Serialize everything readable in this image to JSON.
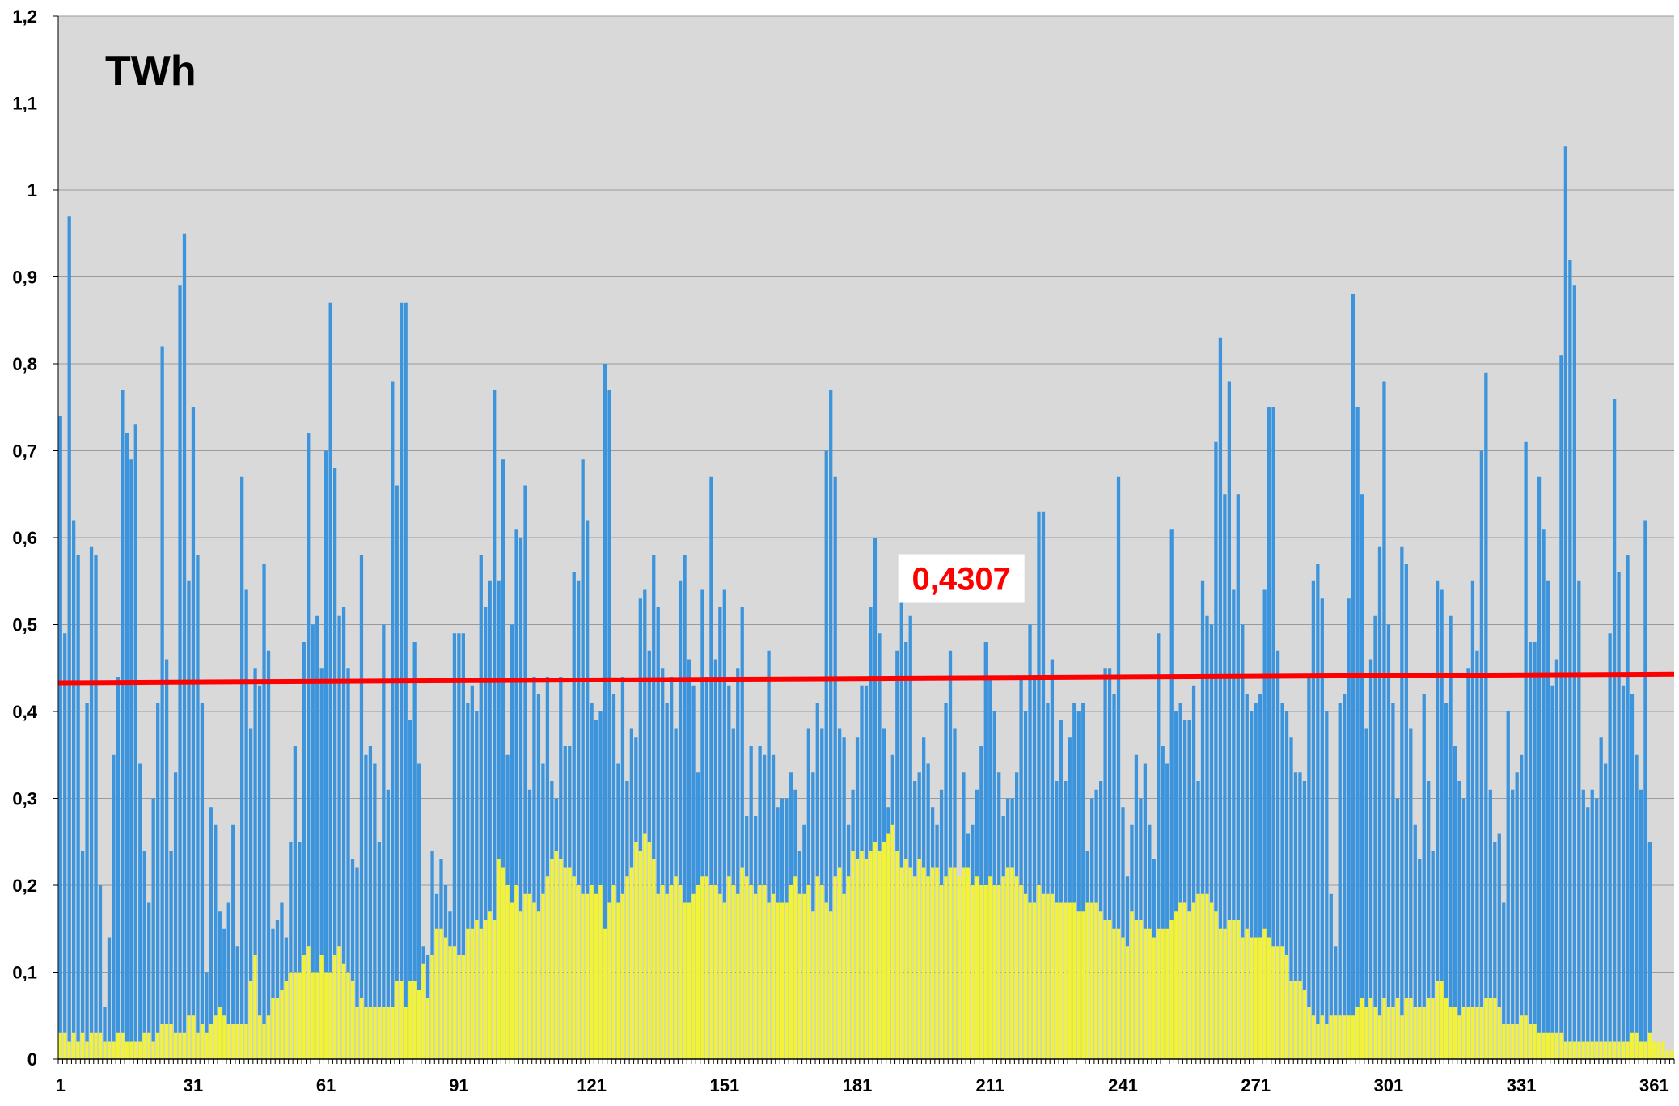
{
  "chart_data": {
    "type": "bar",
    "title": "",
    "unit_label": "TWh",
    "xlabel": "",
    "ylabel": "",
    "ylim": [
      0,
      1.2
    ],
    "yticks": [
      "0",
      "0,1",
      "0,2",
      "0,3",
      "0,4",
      "0,5",
      "0,6",
      "0,7",
      "0,8",
      "0,9",
      "1",
      "1,1",
      "1,2"
    ],
    "xticks": [
      "1",
      "31",
      "61",
      "91",
      "121",
      "151",
      "181",
      "211",
      "241",
      "271",
      "301",
      "331",
      "361"
    ],
    "x_range": [
      1,
      365
    ],
    "grid": true,
    "legend": "none",
    "colors": {
      "total_bar": "#3b94dc",
      "solar_bar": "#f2f239",
      "trendline": "#ff0000",
      "plot_background": "#d9d9d9",
      "annotation": "#ff0000"
    },
    "trendline": {
      "start": 0.433,
      "end": 0.443
    },
    "annotation": {
      "text": "0,4307",
      "day": 205,
      "value": 0.553
    },
    "series": [
      {
        "key": "total",
        "values": [
          0.74,
          0.49,
          0.97,
          0.62,
          0.58,
          0.24,
          0.41,
          0.59,
          0.58,
          0.2,
          0.06,
          0.14,
          0.35,
          0.44,
          0.77,
          0.72,
          0.69,
          0.73,
          0.34,
          0.24,
          0.18,
          0.3,
          0.41,
          0.82,
          0.46,
          0.24,
          0.33,
          0.89,
          0.95,
          0.55,
          0.75,
          0.58,
          0.41,
          0.1,
          0.29,
          0.27,
          0.17,
          0.15,
          0.18,
          0.27,
          0.13,
          0.67,
          0.54,
          0.38,
          0.45,
          0.43,
          0.57,
          0.47,
          0.15,
          0.16,
          0.18,
          0.14,
          0.25,
          0.36,
          0.25,
          0.48,
          0.72,
          0.5,
          0.51,
          0.45,
          0.7,
          0.87,
          0.68,
          0.51,
          0.52,
          0.45,
          0.23,
          0.22,
          0.58,
          0.35,
          0.36,
          0.34,
          0.25,
          0.5,
          0.31,
          0.78,
          0.66,
          0.87,
          0.87,
          0.39,
          0.48,
          0.34,
          0.13,
          0.12,
          0.24,
          0.19,
          0.23,
          0.2,
          0.17,
          0.49,
          0.49,
          0.49,
          0.41,
          0.43,
          0.4,
          0.58,
          0.52,
          0.55,
          0.77,
          0.55,
          0.69,
          0.35,
          0.5,
          0.61,
          0.6,
          0.66,
          0.31,
          0.44,
          0.42,
          0.34,
          0.44,
          0.32,
          0.3,
          0.44,
          0.36,
          0.36,
          0.56,
          0.55,
          0.69,
          0.62,
          0.41,
          0.39,
          0.4,
          0.8,
          0.77,
          0.42,
          0.34,
          0.44,
          0.32,
          0.38,
          0.37,
          0.53,
          0.54,
          0.47,
          0.58,
          0.52,
          0.45,
          0.41,
          0.44,
          0.38,
          0.55,
          0.58,
          0.46,
          0.43,
          0.33,
          0.54,
          0.44,
          0.67,
          0.46,
          0.52,
          0.54,
          0.43,
          0.38,
          0.45,
          0.52,
          0.28,
          0.36,
          0.28,
          0.36,
          0.35,
          0.47,
          0.35,
          0.29,
          0.3,
          0.3,
          0.33,
          0.31,
          0.24,
          0.27,
          0.38,
          0.33,
          0.41,
          0.38,
          0.7,
          0.77,
          0.67,
          0.38,
          0.37,
          0.27,
          0.31,
          0.37,
          0.43,
          0.43,
          0.52,
          0.6,
          0.49,
          0.38,
          0.29,
          0.35,
          0.47,
          0.57,
          0.48,
          0.51,
          0.32,
          0.33,
          0.37,
          0.34,
          0.29,
          0.27,
          0.31,
          0.41,
          0.47,
          0.38,
          0.16,
          0.33,
          0.26,
          0.27,
          0.31,
          0.36,
          0.48,
          0.44,
          0.4,
          0.33,
          0.28,
          0.3,
          0.3,
          0.33,
          0.44,
          0.4,
          0.5,
          0.44,
          0.63,
          0.63,
          0.41,
          0.46,
          0.32,
          0.39,
          0.32,
          0.37,
          0.41,
          0.4,
          0.41,
          0.24,
          0.3,
          0.31,
          0.32,
          0.45,
          0.45,
          0.42,
          0.67,
          0.29,
          0.21,
          0.27,
          0.35,
          0.3,
          0.34,
          0.27,
          0.23,
          0.49,
          0.36,
          0.34,
          0.61,
          0.4,
          0.41,
          0.39,
          0.39,
          0.43,
          0.32,
          0.55,
          0.51,
          0.5,
          0.71,
          0.83,
          0.65,
          0.78,
          0.54,
          0.65,
          0.5,
          0.42,
          0.4,
          0.41,
          0.42,
          0.54,
          0.75,
          0.75,
          0.47,
          0.41,
          0.4,
          0.37,
          0.33,
          0.33,
          0.32,
          0.44,
          0.55,
          0.57,
          0.53,
          0.4,
          0.19,
          0.13,
          0.41,
          0.42,
          0.53,
          0.88,
          0.75,
          0.65,
          0.38,
          0.46,
          0.51,
          0.59,
          0.78,
          0.5,
          0.41,
          0.3,
          0.59,
          0.57,
          0.38,
          0.27,
          0.23,
          0.42,
          0.32,
          0.24,
          0.55,
          0.54,
          0.41,
          0.51,
          0.36,
          0.32,
          0.3,
          0.45,
          0.55,
          0.47,
          0.7,
          0.79,
          0.31,
          0.25,
          0.26,
          0.18,
          0.4,
          0.31,
          0.33,
          0.35,
          0.71,
          0.48,
          0.48,
          0.67,
          0.61,
          0.55,
          0.43,
          0.46,
          0.81,
          1.05,
          0.92,
          0.89,
          0.55,
          0.31,
          0.29,
          0.31,
          0.3,
          0.37,
          0.34,
          0.49,
          0.76,
          0.56,
          0.43,
          0.58,
          0.42,
          0.35,
          0.31,
          0.62,
          0.25
        ]
      },
      {
        "key": "solar",
        "values": [
          0.03,
          0.03,
          0.02,
          0.03,
          0.02,
          0.03,
          0.02,
          0.03,
          0.03,
          0.03,
          0.02,
          0.02,
          0.02,
          0.03,
          0.03,
          0.02,
          0.02,
          0.02,
          0.02,
          0.03,
          0.03,
          0.02,
          0.03,
          0.04,
          0.04,
          0.04,
          0.03,
          0.03,
          0.03,
          0.05,
          0.05,
          0.03,
          0.04,
          0.03,
          0.04,
          0.05,
          0.06,
          0.05,
          0.04,
          0.04,
          0.04,
          0.04,
          0.04,
          0.09,
          0.12,
          0.05,
          0.04,
          0.05,
          0.07,
          0.07,
          0.08,
          0.09,
          0.1,
          0.1,
          0.1,
          0.12,
          0.13,
          0.1,
          0.1,
          0.12,
          0.1,
          0.1,
          0.12,
          0.13,
          0.11,
          0.1,
          0.09,
          0.06,
          0.07,
          0.06,
          0.06,
          0.06,
          0.06,
          0.06,
          0.06,
          0.06,
          0.09,
          0.09,
          0.06,
          0.09,
          0.09,
          0.08,
          0.11,
          0.07,
          0.12,
          0.15,
          0.15,
          0.14,
          0.13,
          0.13,
          0.12,
          0.12,
          0.15,
          0.15,
          0.16,
          0.15,
          0.16,
          0.17,
          0.16,
          0.23,
          0.22,
          0.2,
          0.18,
          0.2,
          0.17,
          0.19,
          0.19,
          0.18,
          0.17,
          0.19,
          0.21,
          0.23,
          0.24,
          0.23,
          0.22,
          0.22,
          0.21,
          0.2,
          0.19,
          0.19,
          0.2,
          0.19,
          0.2,
          0.15,
          0.18,
          0.2,
          0.18,
          0.19,
          0.21,
          0.22,
          0.25,
          0.24,
          0.26,
          0.25,
          0.23,
          0.19,
          0.2,
          0.19,
          0.2,
          0.21,
          0.2,
          0.18,
          0.18,
          0.19,
          0.2,
          0.21,
          0.21,
          0.2,
          0.2,
          0.19,
          0.18,
          0.21,
          0.2,
          0.19,
          0.22,
          0.21,
          0.2,
          0.19,
          0.2,
          0.2,
          0.18,
          0.19,
          0.18,
          0.18,
          0.18,
          0.2,
          0.21,
          0.19,
          0.19,
          0.2,
          0.17,
          0.21,
          0.2,
          0.18,
          0.17,
          0.21,
          0.22,
          0.19,
          0.21,
          0.24,
          0.23,
          0.24,
          0.23,
          0.24,
          0.25,
          0.24,
          0.25,
          0.26,
          0.27,
          0.24,
          0.22,
          0.23,
          0.22,
          0.21,
          0.23,
          0.22,
          0.21,
          0.22,
          0.22,
          0.2,
          0.21,
          0.22,
          0.22,
          0.21,
          0.22,
          0.22,
          0.2,
          0.21,
          0.2,
          0.2,
          0.21,
          0.2,
          0.2,
          0.21,
          0.22,
          0.22,
          0.21,
          0.2,
          0.19,
          0.18,
          0.18,
          0.2,
          0.19,
          0.19,
          0.19,
          0.18,
          0.18,
          0.18,
          0.18,
          0.18,
          0.17,
          0.17,
          0.18,
          0.18,
          0.18,
          0.17,
          0.16,
          0.16,
          0.15,
          0.15,
          0.14,
          0.13,
          0.17,
          0.16,
          0.16,
          0.15,
          0.15,
          0.14,
          0.15,
          0.15,
          0.15,
          0.16,
          0.17,
          0.18,
          0.18,
          0.17,
          0.18,
          0.19,
          0.19,
          0.19,
          0.18,
          0.17,
          0.15,
          0.15,
          0.16,
          0.16,
          0.16,
          0.14,
          0.15,
          0.14,
          0.14,
          0.14,
          0.15,
          0.14,
          0.13,
          0.13,
          0.13,
          0.12,
          0.09,
          0.09,
          0.09,
          0.08,
          0.06,
          0.05,
          0.04,
          0.05,
          0.04,
          0.05,
          0.05,
          0.05,
          0.05,
          0.05,
          0.05,
          0.06,
          0.07,
          0.06,
          0.07,
          0.06,
          0.05,
          0.07,
          0.06,
          0.06,
          0.07,
          0.05,
          0.07,
          0.07,
          0.06,
          0.06,
          0.06,
          0.07,
          0.07,
          0.09,
          0.09,
          0.07,
          0.06,
          0.06,
          0.05,
          0.06,
          0.06,
          0.06,
          0.06,
          0.06,
          0.07,
          0.07,
          0.07,
          0.06,
          0.04,
          0.04,
          0.04,
          0.04,
          0.05,
          0.05,
          0.04,
          0.04,
          0.03,
          0.03,
          0.03,
          0.03,
          0.03,
          0.03,
          0.02,
          0.02,
          0.02,
          0.02,
          0.02,
          0.02,
          0.02,
          0.02,
          0.02,
          0.02,
          0.02,
          0.02,
          0.02,
          0.02,
          0.02,
          0.03,
          0.03,
          0.02,
          0.02,
          0.03,
          0.02,
          0.02,
          0.02,
          0.01,
          0.01
        ]
      }
    ]
  }
}
